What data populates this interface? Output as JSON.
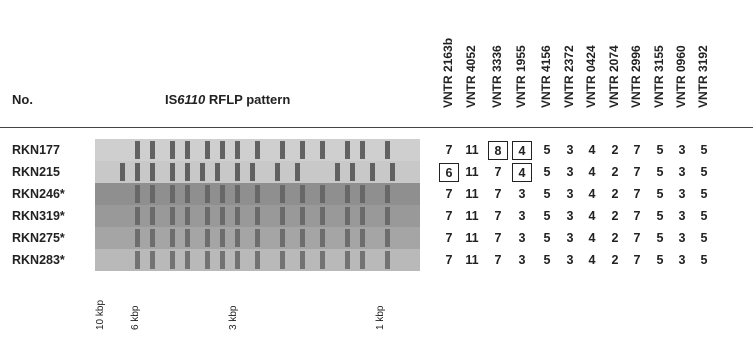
{
  "header": {
    "no": "No.",
    "rflp": [
      "IS",
      "6110",
      "RFLP pattern"
    ],
    "columns": [
      "VNTR 2163b",
      "VNTR 4052",
      "VNTR 3336",
      "VNTR 1955",
      "VNTR 4156",
      "VNTR 2372",
      "VNTR 0424",
      "VNTR 2074",
      "VNTR 2996",
      "VNTR 3155",
      "VNTR 0960",
      "VNTR 3192"
    ]
  },
  "table": {
    "rows": [
      {
        "label": "RKN177",
        "values": [
          7,
          11,
          8,
          4,
          5,
          3,
          4,
          2,
          7,
          5,
          3,
          5
        ],
        "boxed": [
          2,
          3
        ]
      },
      {
        "label": "RKN215",
        "values": [
          6,
          11,
          7,
          4,
          5,
          3,
          4,
          2,
          7,
          5,
          3,
          5
        ],
        "boxed": [
          0,
          3
        ]
      },
      {
        "label": "RKN246*",
        "values": [
          7,
          11,
          7,
          3,
          5,
          3,
          4,
          2,
          7,
          5,
          3,
          5
        ],
        "boxed": []
      },
      {
        "label": "RKN319*",
        "values": [
          7,
          11,
          7,
          3,
          5,
          3,
          4,
          2,
          7,
          5,
          3,
          5
        ],
        "boxed": []
      },
      {
        "label": "RKN275*",
        "values": [
          7,
          11,
          7,
          3,
          5,
          3,
          4,
          2,
          7,
          5,
          3,
          5
        ],
        "boxed": []
      },
      {
        "label": "RKN283*",
        "values": [
          7,
          11,
          7,
          3,
          5,
          3,
          4,
          2,
          7,
          5,
          3,
          5
        ],
        "boxed": []
      }
    ]
  },
  "scale": [
    "10 kbp",
    "6 kbp",
    "3 kbp",
    "1 kbp"
  ]
}
